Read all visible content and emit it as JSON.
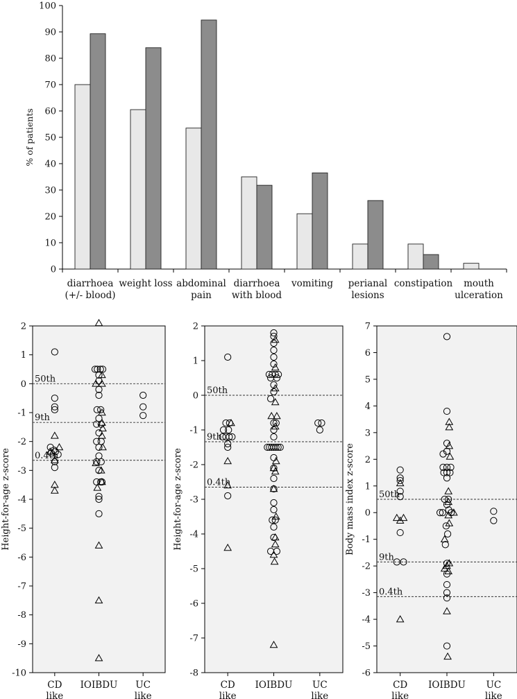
{
  "chart_data": [
    {
      "type": "bar",
      "ylabel": "% of patients",
      "ylim": [
        0,
        100
      ],
      "yticks": [
        0,
        10,
        20,
        30,
        40,
        50,
        60,
        70,
        80,
        90,
        100
      ],
      "categories": [
        [
          "diarrhoea",
          "(+/- blood)"
        ],
        [
          "weight loss"
        ],
        [
          "abdominal",
          "pain"
        ],
        [
          "diarrhoea",
          "with blood"
        ],
        [
          "vomiting"
        ],
        [
          "perianal",
          "lesions"
        ],
        [
          "constipation"
        ],
        [
          "mouth",
          "ulceration"
        ]
      ],
      "series": [
        {
          "name": "light",
          "color": "#e8e8e8",
          "values": [
            70,
            60.5,
            53.5,
            35,
            21,
            9.5,
            9.5,
            2.2
          ]
        },
        {
          "name": "dark",
          "color": "#8c8c8c",
          "values": [
            89.3,
            84,
            94.5,
            31.8,
            36.5,
            26,
            5.5,
            0
          ]
        }
      ]
    },
    {
      "type": "scatter",
      "ylabel": "Height-for-age z-score",
      "ylim": [
        -10,
        2
      ],
      "yticks": [
        2,
        1,
        0,
        -1,
        -2,
        -3,
        -4,
        -5,
        -6,
        -7,
        -8,
        -9,
        -10
      ],
      "groups": [
        [
          "CD",
          "like"
        ],
        [
          "IOIBDU"
        ],
        [
          "UC",
          "like"
        ]
      ],
      "percentiles": [
        {
          "label": "50th",
          "value": 0
        },
        {
          "label": "9th",
          "value": -1.34
        },
        {
          "label": "0.4th",
          "value": -2.65
        }
      ],
      "circles": [
        [
          0,
          1.1
        ],
        [
          0,
          -0.5
        ],
        [
          0,
          -0.8
        ],
        [
          0,
          -0.9
        ],
        [
          -0.28,
          -2.2
        ],
        [
          -0.05,
          -2.3
        ],
        [
          0.05,
          -2.35
        ],
        [
          -0.22,
          -2.4
        ],
        [
          0.22,
          -2.45
        ],
        [
          0,
          -2.7
        ],
        [
          0,
          -2.9
        ],
        [
          -0.25,
          0.5
        ],
        [
          -0.1,
          0.5
        ],
        [
          0.1,
          0.5
        ],
        [
          0.25,
          0.5
        ],
        [
          0,
          0.3
        ],
        [
          0,
          0.1
        ],
        [
          0,
          -0.2
        ],
        [
          0,
          -0.4
        ],
        [
          -0.12,
          -0.9
        ],
        [
          0.12,
          -0.9
        ],
        [
          0,
          -1.2
        ],
        [
          -0.15,
          -1.4
        ],
        [
          0.15,
          -1.4
        ],
        [
          0,
          -1.7
        ],
        [
          -0.15,
          -2.0
        ],
        [
          0.15,
          -2.0
        ],
        [
          0,
          -2.2
        ],
        [
          0,
          -2.5
        ],
        [
          -0.15,
          -2.7
        ],
        [
          0.15,
          -2.7
        ],
        [
          0,
          -3.0
        ],
        [
          -0.15,
          -3.4
        ],
        [
          0.12,
          -3.4
        ],
        [
          0.2,
          -3.4
        ],
        [
          0,
          -3.9
        ],
        [
          0,
          -4.0
        ],
        [
          0,
          -4.5
        ],
        [
          0,
          -0.4
        ],
        [
          0,
          -0.8
        ],
        [
          0,
          -1.1
        ]
      ],
      "triangles": [
        [
          0,
          -1.8
        ],
        [
          -0.3,
          -2.35
        ],
        [
          0.3,
          -2.2
        ],
        [
          0,
          -2.65
        ],
        [
          0,
          -3.5
        ],
        [
          0,
          -3.7
        ],
        [
          0,
          2.1
        ],
        [
          0.2,
          0.3
        ],
        [
          -0.2,
          0.0
        ],
        [
          0.2,
          0.0
        ],
        [
          0.2,
          -1.0
        ],
        [
          0.2,
          -1.35
        ],
        [
          0.25,
          -1.55
        ],
        [
          0.2,
          -1.8
        ],
        [
          0.25,
          -2.2
        ],
        [
          -0.2,
          -2.75
        ],
        [
          0.15,
          -3.0
        ],
        [
          0.2,
          -3.4
        ],
        [
          -0.1,
          -3.6
        ],
        [
          0,
          -5.6
        ],
        [
          0,
          -7.5
        ],
        [
          0,
          -9.5
        ]
      ]
    },
    {
      "type": "scatter",
      "ylabel": "Height-for-age z-score",
      "ylim": [
        -8,
        2
      ],
      "yticks": [
        2,
        1,
        0,
        -1,
        -2,
        -3,
        -4,
        -5,
        -6,
        -7,
        -8
      ],
      "groups": [
        [
          "CD",
          "like"
        ],
        [
          "IOIBDU"
        ],
        [
          "UC",
          "like"
        ]
      ],
      "percentiles": [
        {
          "label": "50th",
          "value": 0
        },
        {
          "label": "9th",
          "value": -1.34
        },
        {
          "label": "0.4th",
          "value": -2.65
        }
      ],
      "circles": [
        [
          0,
          1.1
        ],
        [
          -0.12,
          -0.8
        ],
        [
          0.12,
          -0.8
        ],
        [
          -0.28,
          -1.0
        ],
        [
          0.05,
          -1.0
        ],
        [
          -0.34,
          -1.2
        ],
        [
          -0.12,
          -1.2
        ],
        [
          0.1,
          -1.2
        ],
        [
          0.28,
          -1.2
        ],
        [
          0,
          -1.4
        ],
        [
          0,
          -1.5
        ],
        [
          0,
          -2.9
        ],
        [
          0,
          1.8
        ],
        [
          0,
          1.7
        ],
        [
          0,
          1.5
        ],
        [
          0,
          1.3
        ],
        [
          0,
          1.1
        ],
        [
          0,
          0.9
        ],
        [
          -0.3,
          0.6
        ],
        [
          -0.1,
          0.6
        ],
        [
          0.1,
          0.6
        ],
        [
          0.3,
          0.6
        ],
        [
          -0.2,
          0.5
        ],
        [
          0.2,
          0.5
        ],
        [
          0,
          0.3
        ],
        [
          0,
          0.1
        ],
        [
          -0.2,
          -0.1
        ],
        [
          0,
          -0.8
        ],
        [
          0.15,
          -0.8
        ],
        [
          0,
          -1.0
        ],
        [
          0,
          -1.2
        ],
        [
          -0.42,
          -1.5
        ],
        [
          -0.28,
          -1.5
        ],
        [
          -0.14,
          -1.5
        ],
        [
          0,
          -1.5
        ],
        [
          0.14,
          -1.5
        ],
        [
          0.28,
          -1.5
        ],
        [
          0.42,
          -1.5
        ],
        [
          0,
          -1.8
        ],
        [
          0,
          -2.1
        ],
        [
          0,
          -2.4
        ],
        [
          0,
          -2.7
        ],
        [
          0,
          -3.1
        ],
        [
          0,
          -3.3
        ],
        [
          -0.1,
          -3.6
        ],
        [
          0.1,
          -3.6
        ],
        [
          0,
          -3.8
        ],
        [
          0,
          -4.1
        ],
        [
          -0.2,
          -4.5
        ],
        [
          0.2,
          -4.5
        ],
        [
          -0.12,
          -0.8
        ],
        [
          0.12,
          -0.8
        ],
        [
          0,
          -1.0
        ]
      ],
      "triangles": [
        [
          0.22,
          -0.8
        ],
        [
          0,
          -1.9
        ],
        [
          0,
          -2.6
        ],
        [
          0,
          -4.4
        ],
        [
          0.1,
          1.6
        ],
        [
          0.1,
          0.8
        ],
        [
          0.1,
          0.2
        ],
        [
          0.1,
          -0.2
        ],
        [
          -0.15,
          -0.6
        ],
        [
          0.2,
          -0.6
        ],
        [
          0.1,
          -0.9
        ],
        [
          0.15,
          -1.9
        ],
        [
          0,
          -2.1
        ],
        [
          0.1,
          -2.2
        ],
        [
          0,
          -2.7
        ],
        [
          0.15,
          -3.5
        ],
        [
          0.1,
          -4.1
        ],
        [
          0.1,
          -4.3
        ],
        [
          0,
          -4.6
        ],
        [
          0.05,
          -4.8
        ],
        [
          0,
          -7.2
        ]
      ]
    },
    {
      "type": "scatter",
      "ylabel": "Body mass index z-score",
      "ylim": [
        -6,
        7
      ],
      "yticks": [
        7,
        6,
        5,
        4,
        3,
        2,
        1,
        0,
        -1,
        -2,
        -3,
        -4,
        -5,
        -6
      ],
      "groups": [
        [
          "CD",
          "like"
        ],
        [
          "IOIBDU"
        ],
        [
          "UC",
          "like"
        ]
      ],
      "percentiles": [
        {
          "label": "50th",
          "value": 0.5
        },
        {
          "label": "9th",
          "value": -1.85
        },
        {
          "label": "0.4th",
          "value": -3.15
        }
      ],
      "circles": [
        [
          0,
          1.6
        ],
        [
          0,
          1.3
        ],
        [
          0,
          1.2
        ],
        [
          0,
          0.8
        ],
        [
          0,
          0.6
        ],
        [
          0,
          -0.75
        ],
        [
          -0.22,
          -1.85
        ],
        [
          0.22,
          -1.85
        ],
        [
          0,
          6.6
        ],
        [
          0,
          3.8
        ],
        [
          0,
          2.6
        ],
        [
          0,
          2.3
        ],
        [
          -0.25,
          2.2
        ],
        [
          -0.25,
          1.7
        ],
        [
          0,
          1.7
        ],
        [
          0.25,
          1.7
        ],
        [
          -0.2,
          1.5
        ],
        [
          0,
          1.5
        ],
        [
          0.2,
          1.5
        ],
        [
          0,
          1.3
        ],
        [
          -0.15,
          0.5
        ],
        [
          0.1,
          0.5
        ],
        [
          0,
          0.3
        ],
        [
          -0.45,
          0.0
        ],
        [
          -0.28,
          0.0
        ],
        [
          0.28,
          0.0
        ],
        [
          0.12,
          0.1
        ],
        [
          -0.05,
          -0.5
        ],
        [
          0.05,
          -0.8
        ],
        [
          -0.1,
          -1.2
        ],
        [
          0,
          -1.9
        ],
        [
          0,
          -2.3
        ],
        [
          0,
          -2.7
        ],
        [
          0,
          -3.0
        ],
        [
          0,
          -3.2
        ],
        [
          0,
          -5.0
        ],
        [
          0,
          0.05
        ],
        [
          0,
          -0.3
        ]
      ],
      "triangles": [
        [
          0,
          1.1
        ],
        [
          -0.22,
          -0.2
        ],
        [
          0.22,
          -0.2
        ],
        [
          0,
          -0.3
        ],
        [
          0,
          -4.0
        ],
        [
          0.15,
          3.4
        ],
        [
          0.15,
          3.2
        ],
        [
          0.15,
          2.5
        ],
        [
          0.2,
          2.1
        ],
        [
          0.1,
          0.8
        ],
        [
          0.1,
          0.4
        ],
        [
          0.1,
          -0.1
        ],
        [
          0.45,
          0.0
        ],
        [
          0.15,
          -0.4
        ],
        [
          -0.15,
          -1.0
        ],
        [
          0.15,
          -1.9
        ],
        [
          0,
          -2.0
        ],
        [
          -0.15,
          -2.1
        ],
        [
          0.1,
          -2.2
        ],
        [
          0,
          -3.7
        ],
        [
          0.05,
          -5.4
        ]
      ]
    }
  ]
}
